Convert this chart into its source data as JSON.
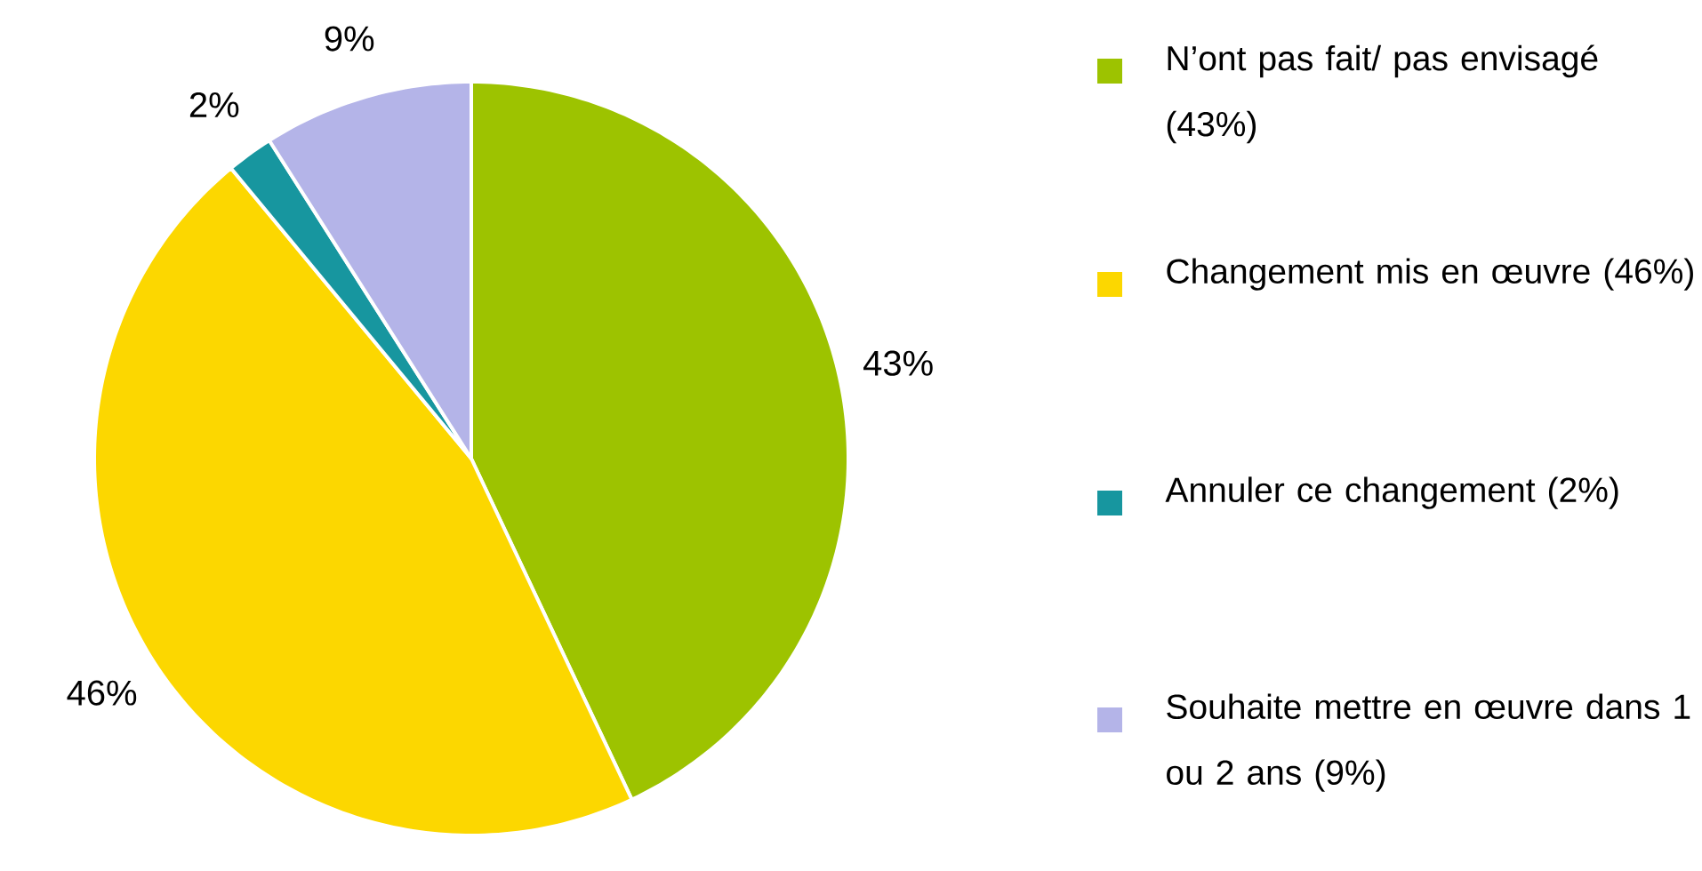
{
  "chart_data": {
    "type": "pie",
    "categories": [
      "N’ont pas fait/ pas envisagé (43%)",
      "Changement mis en œuvre (46%)",
      "Annuler ce changement (2%)",
      "Souhaite mettre en œuvre dans 1 ou 2 ans (9%)"
    ],
    "values": [
      43,
      46,
      2,
      9
    ],
    "colors": [
      "#9dc300",
      "#fcd700",
      "#17969f",
      "#b4b4e8"
    ],
    "value_labels": [
      "43%",
      "46%",
      "2%",
      "9%"
    ],
    "legend": "right"
  }
}
